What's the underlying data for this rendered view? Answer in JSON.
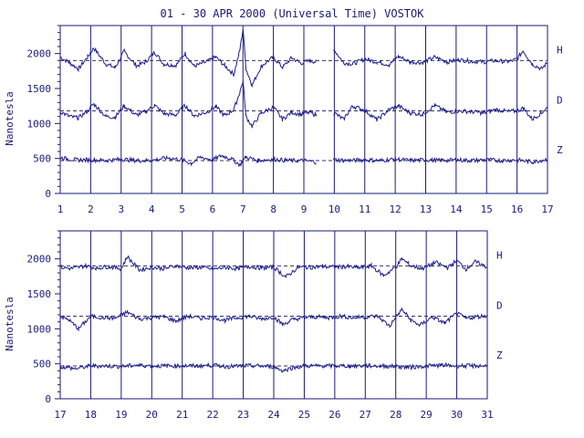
{
  "title": "01 - 30 APR 2000 (Universal Time) VOSTOK",
  "colors": {
    "ink": "#1a1a7a",
    "trace": "#1c1c8c"
  },
  "chart_data": [
    {
      "type": "line",
      "ylabel": "Nanotesla",
      "ylim": [
        0,
        2400
      ],
      "yticks": [
        0,
        500,
        1000,
        1500,
        2000
      ],
      "xlim": [
        1,
        17
      ],
      "xticks": [
        "1",
        "2",
        "3",
        "4",
        "5",
        "6",
        "7",
        "8",
        "9",
        "10",
        "11",
        "12",
        "13",
        "14",
        "15",
        "16",
        "17"
      ],
      "baselines": {
        "H": 1900,
        "D": 1180,
        "Z": 470
      },
      "series": [
        {
          "name": "H",
          "x": [
            1,
            1.3,
            1.6,
            1.9,
            2.1,
            2.5,
            2.8,
            3.1,
            3.5,
            3.8,
            4.1,
            4.4,
            4.8,
            5.1,
            5.4,
            5.8,
            6.1,
            6.4,
            6.7,
            6.9,
            7.0,
            7.1,
            7.3,
            7.6,
            8.0,
            8.3,
            8.6,
            8.9,
            9.2,
            9.4,
            10.0,
            10.3,
            10.6,
            11.0,
            11.4,
            11.8,
            12.1,
            12.5,
            12.9,
            13.3,
            13.7,
            14.1,
            14.5,
            14.9,
            15.3,
            15.7,
            16.0,
            16.2,
            16.5,
            16.8,
            17.0
          ],
          "y": [
            1950,
            1870,
            1780,
            1950,
            2080,
            1850,
            1800,
            2030,
            1820,
            1880,
            2020,
            1850,
            1830,
            2000,
            1820,
            1880,
            1950,
            1830,
            1700,
            2050,
            2350,
            1780,
            1550,
            1820,
            1950,
            1800,
            1940,
            1860,
            1900,
            1880,
            2050,
            1870,
            1850,
            1920,
            1880,
            1840,
            1960,
            1880,
            1870,
            1950,
            1880,
            1910,
            1890,
            1880,
            1900,
            1880,
            1920,
            2040,
            1850,
            1780,
            1870
          ],
          "gaps": [
            [
              9.4,
              9.95
            ]
          ]
        },
        {
          "name": "D",
          "x": [
            1,
            1.3,
            1.6,
            1.9,
            2.1,
            2.5,
            2.8,
            3.1,
            3.5,
            3.8,
            4.1,
            4.4,
            4.8,
            5.1,
            5.4,
            5.8,
            6.1,
            6.4,
            6.7,
            6.9,
            7.0,
            7.1,
            7.3,
            7.6,
            8.0,
            8.3,
            8.6,
            8.9,
            9.2,
            9.4,
            10.0,
            10.3,
            10.6,
            11.0,
            11.4,
            11.8,
            12.1,
            12.5,
            12.9,
            13.3,
            13.7,
            14.1,
            14.5,
            14.9,
            15.3,
            15.7,
            16.0,
            16.2,
            16.5,
            16.8,
            17.0
          ],
          "y": [
            1170,
            1100,
            1080,
            1180,
            1280,
            1100,
            1090,
            1250,
            1120,
            1170,
            1260,
            1140,
            1120,
            1260,
            1110,
            1160,
            1240,
            1110,
            1200,
            1450,
            1600,
            1100,
            960,
            1150,
            1230,
            1060,
            1160,
            1130,
            1160,
            1120,
            1150,
            1060,
            1250,
            1190,
            1050,
            1200,
            1250,
            1150,
            1130,
            1260,
            1160,
            1180,
            1170,
            1150,
            1200,
            1170,
            1180,
            1220,
            1060,
            1150,
            1230
          ],
          "gaps": [
            [
              9.4,
              9.95
            ]
          ]
        },
        {
          "name": "Z",
          "x": [
            1,
            1.5,
            2,
            2.5,
            3,
            3.5,
            4,
            4.5,
            5,
            5.3,
            5.6,
            6,
            6.3,
            6.6,
            6.9,
            7.1,
            7.5,
            8,
            8.5,
            9,
            9.4,
            10,
            10.5,
            11,
            11.5,
            12,
            12.5,
            13,
            13.5,
            14,
            14.5,
            15,
            15.5,
            16,
            16.5,
            17
          ],
          "y": [
            510,
            480,
            480,
            470,
            490,
            470,
            470,
            510,
            480,
            430,
            520,
            480,
            540,
            500,
            410,
            520,
            470,
            490,
            470,
            470,
            450,
            480,
            470,
            480,
            470,
            490,
            470,
            480,
            470,
            480,
            470,
            480,
            470,
            480,
            450,
            490
          ],
          "gaps": [
            [
              9.4,
              9.95
            ]
          ]
        }
      ]
    },
    {
      "type": "line",
      "ylabel": "Nanotesla",
      "ylim": [
        0,
        2400
      ],
      "yticks": [
        0,
        500,
        1000,
        1500,
        2000
      ],
      "xlim": [
        17,
        31
      ],
      "xticks": [
        "17",
        "18",
        "19",
        "20",
        "21",
        "22",
        "23",
        "24",
        "25",
        "26",
        "27",
        "28",
        "29",
        "30",
        "31"
      ],
      "baselines": {
        "H": 1900,
        "D": 1180,
        "Z": 470
      },
      "series": [
        {
          "name": "H",
          "x": [
            17,
            17.4,
            17.8,
            18.2,
            18.6,
            19.0,
            19.2,
            19.6,
            20.0,
            20.4,
            20.8,
            21.2,
            21.6,
            22.0,
            22.4,
            22.8,
            23.2,
            23.6,
            24.0,
            24.4,
            24.8,
            25.2,
            25.6,
            26.0,
            26.4,
            26.8,
            27.2,
            27.6,
            28.0,
            28.2,
            28.5,
            28.9,
            29.3,
            29.7,
            30.0,
            30.3,
            30.6,
            31.0
          ],
          "y": [
            1880,
            1860,
            1900,
            1870,
            1890,
            1860,
            2030,
            1840,
            1880,
            1860,
            1900,
            1870,
            1880,
            1850,
            1880,
            1860,
            1890,
            1870,
            1880,
            1740,
            1880,
            1880,
            1890,
            1880,
            1890,
            1870,
            1900,
            1760,
            1880,
            2000,
            1900,
            1860,
            1950,
            1870,
            1980,
            1850,
            1960,
            1880
          ]
        },
        {
          "name": "D",
          "x": [
            17,
            17.3,
            17.6,
            18.0,
            18.4,
            18.8,
            19.2,
            19.6,
            20.0,
            20.4,
            20.8,
            21.2,
            21.6,
            22.0,
            22.4,
            22.8,
            23.2,
            23.6,
            24.0,
            24.3,
            24.6,
            25.0,
            25.4,
            25.8,
            26.2,
            26.6,
            27.0,
            27.4,
            27.8,
            28.0,
            28.2,
            28.5,
            28.8,
            29.2,
            29.6,
            30.0,
            30.3,
            30.6,
            31.0
          ],
          "y": [
            1180,
            1120,
            1000,
            1180,
            1160,
            1150,
            1240,
            1140,
            1160,
            1170,
            1110,
            1180,
            1150,
            1170,
            1120,
            1160,
            1180,
            1140,
            1170,
            1060,
            1130,
            1160,
            1170,
            1160,
            1180,
            1160,
            1170,
            1180,
            1040,
            1160,
            1280,
            1120,
            1050,
            1170,
            1080,
            1220,
            1150,
            1170,
            1190
          ]
        },
        {
          "name": "Z",
          "x": [
            17,
            17.5,
            18,
            18.5,
            19,
            19.5,
            20,
            20.5,
            21,
            21.5,
            22,
            22.5,
            23,
            23.5,
            24,
            24.3,
            24.6,
            25,
            25.5,
            26,
            26.5,
            27,
            27.5,
            28,
            28.5,
            29,
            29.5,
            30,
            30.5,
            31
          ],
          "y": [
            460,
            430,
            470,
            470,
            460,
            480,
            470,
            470,
            470,
            470,
            480,
            460,
            470,
            470,
            460,
            400,
            440,
            470,
            470,
            470,
            470,
            470,
            470,
            460,
            450,
            470,
            480,
            470,
            470,
            470
          ]
        }
      ]
    }
  ]
}
